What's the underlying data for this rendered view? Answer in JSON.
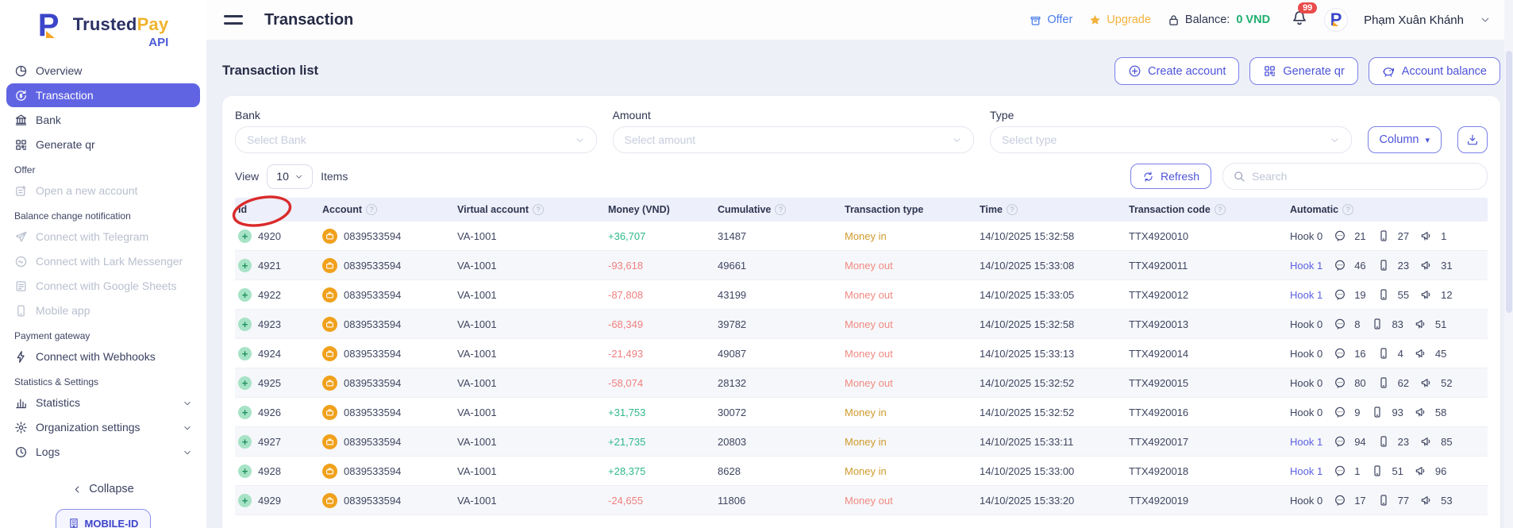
{
  "brand": {
    "name_bold": "Trusted",
    "name_light": "Pay",
    "sub": "API"
  },
  "sidebar": {
    "items": [
      {
        "type": "item",
        "icon": "pie",
        "label": "Overview"
      },
      {
        "type": "item",
        "icon": "coins",
        "label": "Transaction",
        "active": true
      },
      {
        "type": "item",
        "icon": "bank",
        "label": "Bank"
      },
      {
        "type": "item",
        "icon": "qr",
        "label": "Generate qr"
      },
      {
        "type": "section",
        "label": "Offer"
      },
      {
        "type": "item",
        "icon": "doc-plus",
        "label": "Open a new account",
        "muted": true
      },
      {
        "type": "section",
        "label": "Balance change notification"
      },
      {
        "type": "item",
        "icon": "send",
        "label": "Connect with Telegram",
        "muted": true
      },
      {
        "type": "item",
        "icon": "chat",
        "label": "Connect with Lark Messenger",
        "muted": true
      },
      {
        "type": "item",
        "icon": "sheet",
        "label": "Connect with Google Sheets",
        "muted": true
      },
      {
        "type": "item",
        "icon": "phone",
        "label": "Mobile app",
        "muted": true
      },
      {
        "type": "section",
        "label": "Payment gateway"
      },
      {
        "type": "item",
        "icon": "bolt",
        "label": "Connect with Webhooks"
      },
      {
        "type": "section",
        "label": "Statistics & Settings"
      },
      {
        "type": "item",
        "icon": "stats",
        "label": "Statistics",
        "chevron": true
      },
      {
        "type": "item",
        "icon": "gear",
        "label": "Organization settings",
        "chevron": true
      },
      {
        "type": "item",
        "icon": "clock",
        "label": "Logs",
        "chevron": true
      }
    ],
    "collapse_label": "Collapse",
    "mobile_id_label": "MOBILE-ID"
  },
  "header": {
    "title": "Transaction",
    "offer": "Offer",
    "upgrade": "Upgrade",
    "balance_label": "Balance:",
    "balance_value": "0 VND",
    "notification_count": "99",
    "user_name": "Phạm Xuân Khánh"
  },
  "page": {
    "list_title": "Transaction list",
    "actions": [
      {
        "icon": "plus-circle",
        "label": "Create account"
      },
      {
        "icon": "qr",
        "label": "Generate qr"
      },
      {
        "icon": "piggy",
        "label": "Account balance"
      }
    ]
  },
  "filters": [
    {
      "label": "Bank",
      "placeholder": "Select Bank"
    },
    {
      "label": "Amount",
      "placeholder": "Select amount"
    },
    {
      "label": "Type",
      "placeholder": "Select type"
    }
  ],
  "column_button_label": "Column",
  "controls": {
    "view_label": "View",
    "page_size": "10",
    "items_label": "Items",
    "refresh_label": "Refresh",
    "search_placeholder": "Search"
  },
  "table": {
    "columns": [
      {
        "label": "Id",
        "info": false
      },
      {
        "label": "Account",
        "info": true
      },
      {
        "label": "Virtual account",
        "info": true
      },
      {
        "label": "Money (VND)",
        "info": false
      },
      {
        "label": "Cumulative",
        "info": true
      },
      {
        "label": "Transaction type",
        "info": false
      },
      {
        "label": "Time",
        "info": true
      },
      {
        "label": "Transaction code",
        "info": true
      },
      {
        "label": "Automatic",
        "info": true
      }
    ],
    "rows": [
      {
        "id": "4920",
        "account": "0839533594",
        "virtual_account": "VA-1001",
        "money": "+36,707",
        "direction": "in",
        "cumulative": "31487",
        "type": "Money in",
        "time": "14/10/2025 15:32:58",
        "code": "TTX4920010",
        "hook": "Hook 0",
        "hook_on": false,
        "chat": "21",
        "phone": "27",
        "megaphone": "1"
      },
      {
        "id": "4921",
        "account": "0839533594",
        "virtual_account": "VA-1001",
        "money": "-93,618",
        "direction": "out",
        "cumulative": "49661",
        "type": "Money out",
        "time": "14/10/2025 15:33:08",
        "code": "TTX4920011",
        "hook": "Hook 1",
        "hook_on": true,
        "chat": "46",
        "phone": "23",
        "megaphone": "31"
      },
      {
        "id": "4922",
        "account": "0839533594",
        "virtual_account": "VA-1001",
        "money": "-87,808",
        "direction": "out",
        "cumulative": "43199",
        "type": "Money out",
        "time": "14/10/2025 15:33:05",
        "code": "TTX4920012",
        "hook": "Hook 1",
        "hook_on": true,
        "chat": "19",
        "phone": "55",
        "megaphone": "12"
      },
      {
        "id": "4923",
        "account": "0839533594",
        "virtual_account": "VA-1001",
        "money": "-68,349",
        "direction": "out",
        "cumulative": "39782",
        "type": "Money out",
        "time": "14/10/2025 15:32:58",
        "code": "TTX4920013",
        "hook": "Hook 0",
        "hook_on": false,
        "chat": "8",
        "phone": "83",
        "megaphone": "51"
      },
      {
        "id": "4924",
        "account": "0839533594",
        "virtual_account": "VA-1001",
        "money": "-21,493",
        "direction": "out",
        "cumulative": "49087",
        "type": "Money out",
        "time": "14/10/2025 15:33:13",
        "code": "TTX4920014",
        "hook": "Hook 0",
        "hook_on": false,
        "chat": "16",
        "phone": "4",
        "megaphone": "45"
      },
      {
        "id": "4925",
        "account": "0839533594",
        "virtual_account": "VA-1001",
        "money": "-58,074",
        "direction": "out",
        "cumulative": "28132",
        "type": "Money out",
        "time": "14/10/2025 15:32:52",
        "code": "TTX4920015",
        "hook": "Hook 0",
        "hook_on": false,
        "chat": "80",
        "phone": "62",
        "megaphone": "52"
      },
      {
        "id": "4926",
        "account": "0839533594",
        "virtual_account": "VA-1001",
        "money": "+31,753",
        "direction": "in",
        "cumulative": "30072",
        "type": "Money in",
        "time": "14/10/2025 15:32:52",
        "code": "TTX4920016",
        "hook": "Hook 0",
        "hook_on": false,
        "chat": "9",
        "phone": "93",
        "megaphone": "58"
      },
      {
        "id": "4927",
        "account": "0839533594",
        "virtual_account": "VA-1001",
        "money": "+21,735",
        "direction": "in",
        "cumulative": "20803",
        "type": "Money in",
        "time": "14/10/2025 15:33:11",
        "code": "TTX4920017",
        "hook": "Hook 1",
        "hook_on": true,
        "chat": "94",
        "phone": "23",
        "megaphone": "85"
      },
      {
        "id": "4928",
        "account": "0839533594",
        "virtual_account": "VA-1001",
        "money": "+28,375",
        "direction": "in",
        "cumulative": "8628",
        "type": "Money in",
        "time": "14/10/2025 15:33:00",
        "code": "TTX4920018",
        "hook": "Hook 1",
        "hook_on": true,
        "chat": "1",
        "phone": "51",
        "megaphone": "96"
      },
      {
        "id": "4929",
        "account": "0839533594",
        "virtual_account": "VA-1001",
        "money": "-24,655",
        "direction": "out",
        "cumulative": "11806",
        "type": "Money out",
        "time": "14/10/2025 15:33:20",
        "code": "TTX4920019",
        "hook": "Hook 0",
        "hook_on": false,
        "chat": "17",
        "phone": "77",
        "megaphone": "53"
      }
    ]
  },
  "colors": {
    "accent": "#6064e3",
    "money_in_green": "#2eb88a",
    "money_out_red": "#f07f7f",
    "type_in_amber": "#cf9a2c",
    "balance_green": "#1fae6e",
    "badge_red": "#e94b4b",
    "annotation_red": "#d92b2b"
  },
  "icons": [
    "pie-icon",
    "coins-icon",
    "bank-icon",
    "qr-icon",
    "doc-plus-icon",
    "send-icon",
    "chat-icon",
    "sheet-icon",
    "phone-icon",
    "bolt-icon",
    "stats-icon",
    "gear-icon",
    "clock-icon",
    "chevron-left-icon",
    "chevron-down-icon",
    "building-icon",
    "plus-circle-icon",
    "piggy-icon",
    "download-icon",
    "refresh-icon",
    "search-icon",
    "gift-box-icon",
    "star-icon",
    "lock-icon",
    "bell-icon",
    "briefcase-icon",
    "chat-bubble-icon",
    "smartphone-icon",
    "megaphone-icon",
    "hamburger-icon",
    "question-icon"
  ]
}
